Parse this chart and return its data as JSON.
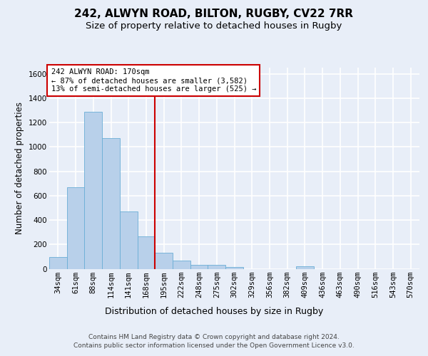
{
  "title1": "242, ALWYN ROAD, BILTON, RUGBY, CV22 7RR",
  "title2": "Size of property relative to detached houses in Rugby",
  "xlabel": "Distribution of detached houses by size in Rugby",
  "ylabel": "Number of detached properties",
  "bin_labels": [
    "34sqm",
    "61sqm",
    "88sqm",
    "114sqm",
    "141sqm",
    "168sqm",
    "195sqm",
    "222sqm",
    "248sqm",
    "275sqm",
    "302sqm",
    "329sqm",
    "356sqm",
    "382sqm",
    "409sqm",
    "436sqm",
    "463sqm",
    "490sqm",
    "516sqm",
    "543sqm",
    "570sqm"
  ],
  "bar_heights": [
    95,
    670,
    1290,
    1070,
    470,
    265,
    130,
    70,
    35,
    35,
    15,
    0,
    0,
    0,
    20,
    0,
    0,
    0,
    0,
    0,
    0
  ],
  "bar_color": "#b8d0ea",
  "bar_edge_color": "#6aaed6",
  "vline_index": 5,
  "vline_color": "#cc0000",
  "annotation_line1": "242 ALWYN ROAD: 170sqm",
  "annotation_line2": "← 87% of detached houses are smaller (3,582)",
  "annotation_line3": "13% of semi-detached houses are larger (525) →",
  "annotation_box_facecolor": "#ffffff",
  "annotation_box_edgecolor": "#cc0000",
  "ylim": [
    0,
    1650
  ],
  "yticks": [
    0,
    200,
    400,
    600,
    800,
    1000,
    1200,
    1400,
    1600
  ],
  "footer_text": "Contains HM Land Registry data © Crown copyright and database right 2024.\nContains public sector information licensed under the Open Government Licence v3.0.",
  "bg_color": "#e8eef8",
  "grid_color": "#ffffff",
  "title1_fontsize": 11,
  "title2_fontsize": 9.5,
  "xlabel_fontsize": 9,
  "ylabel_fontsize": 8.5,
  "tick_fontsize": 7.5,
  "annot_fontsize": 7.5,
  "footer_fontsize": 6.5
}
